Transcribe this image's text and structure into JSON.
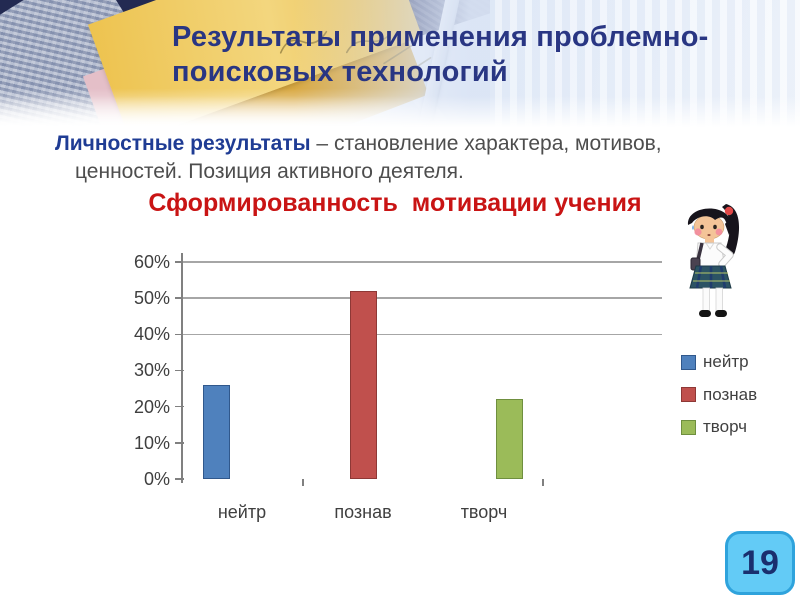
{
  "slide": {
    "title": "Результаты применения проблемно-\nпоисковых технологий",
    "body_emphasis": "Личностные результаты",
    "body_text": " – становление характера, мотивов,\nценностей. Позиция активного деятеля.",
    "chart_heading": "Сформированность  мотивации учения",
    "page_number": "19"
  },
  "chart_data": {
    "type": "bar",
    "title": "Сформированность мотивации учения",
    "categories": [
      "нейтр",
      "познав",
      "творч"
    ],
    "values": [
      26,
      52,
      22
    ],
    "value_unit": "%",
    "xlabel": "",
    "ylabel": "",
    "ylim": [
      0,
      60
    ],
    "yticks": [
      0,
      10,
      20,
      30,
      40,
      50,
      60
    ],
    "ytick_labels": [
      "0%",
      "10%",
      "20%",
      "30%",
      "40%",
      "50%",
      "60%"
    ],
    "gridlines_at": [
      40,
      50,
      60
    ],
    "legend_position": "right",
    "legend": [
      {
        "label": "нейтр",
        "color": "#4F81BD",
        "border": "#30588C"
      },
      {
        "label": "познав",
        "color": "#C0504D",
        "border": "#8E3836"
      },
      {
        "label": "творч",
        "color": "#9BBB59",
        "border": "#6F8F3F"
      }
    ]
  },
  "colors": {
    "title": "#293683",
    "body_emphasis": "#1F3C94",
    "body_text": "#4D4D4D",
    "chart_heading": "#C91414",
    "axis_text": "#3F3F3F",
    "grid": "#A6A6A6",
    "axis_line": "#808080",
    "legend_text": "#404040",
    "badge_bg": "#63CBF6",
    "badge_border": "#2FA3DC",
    "badge_text": "#1A2F6E"
  }
}
